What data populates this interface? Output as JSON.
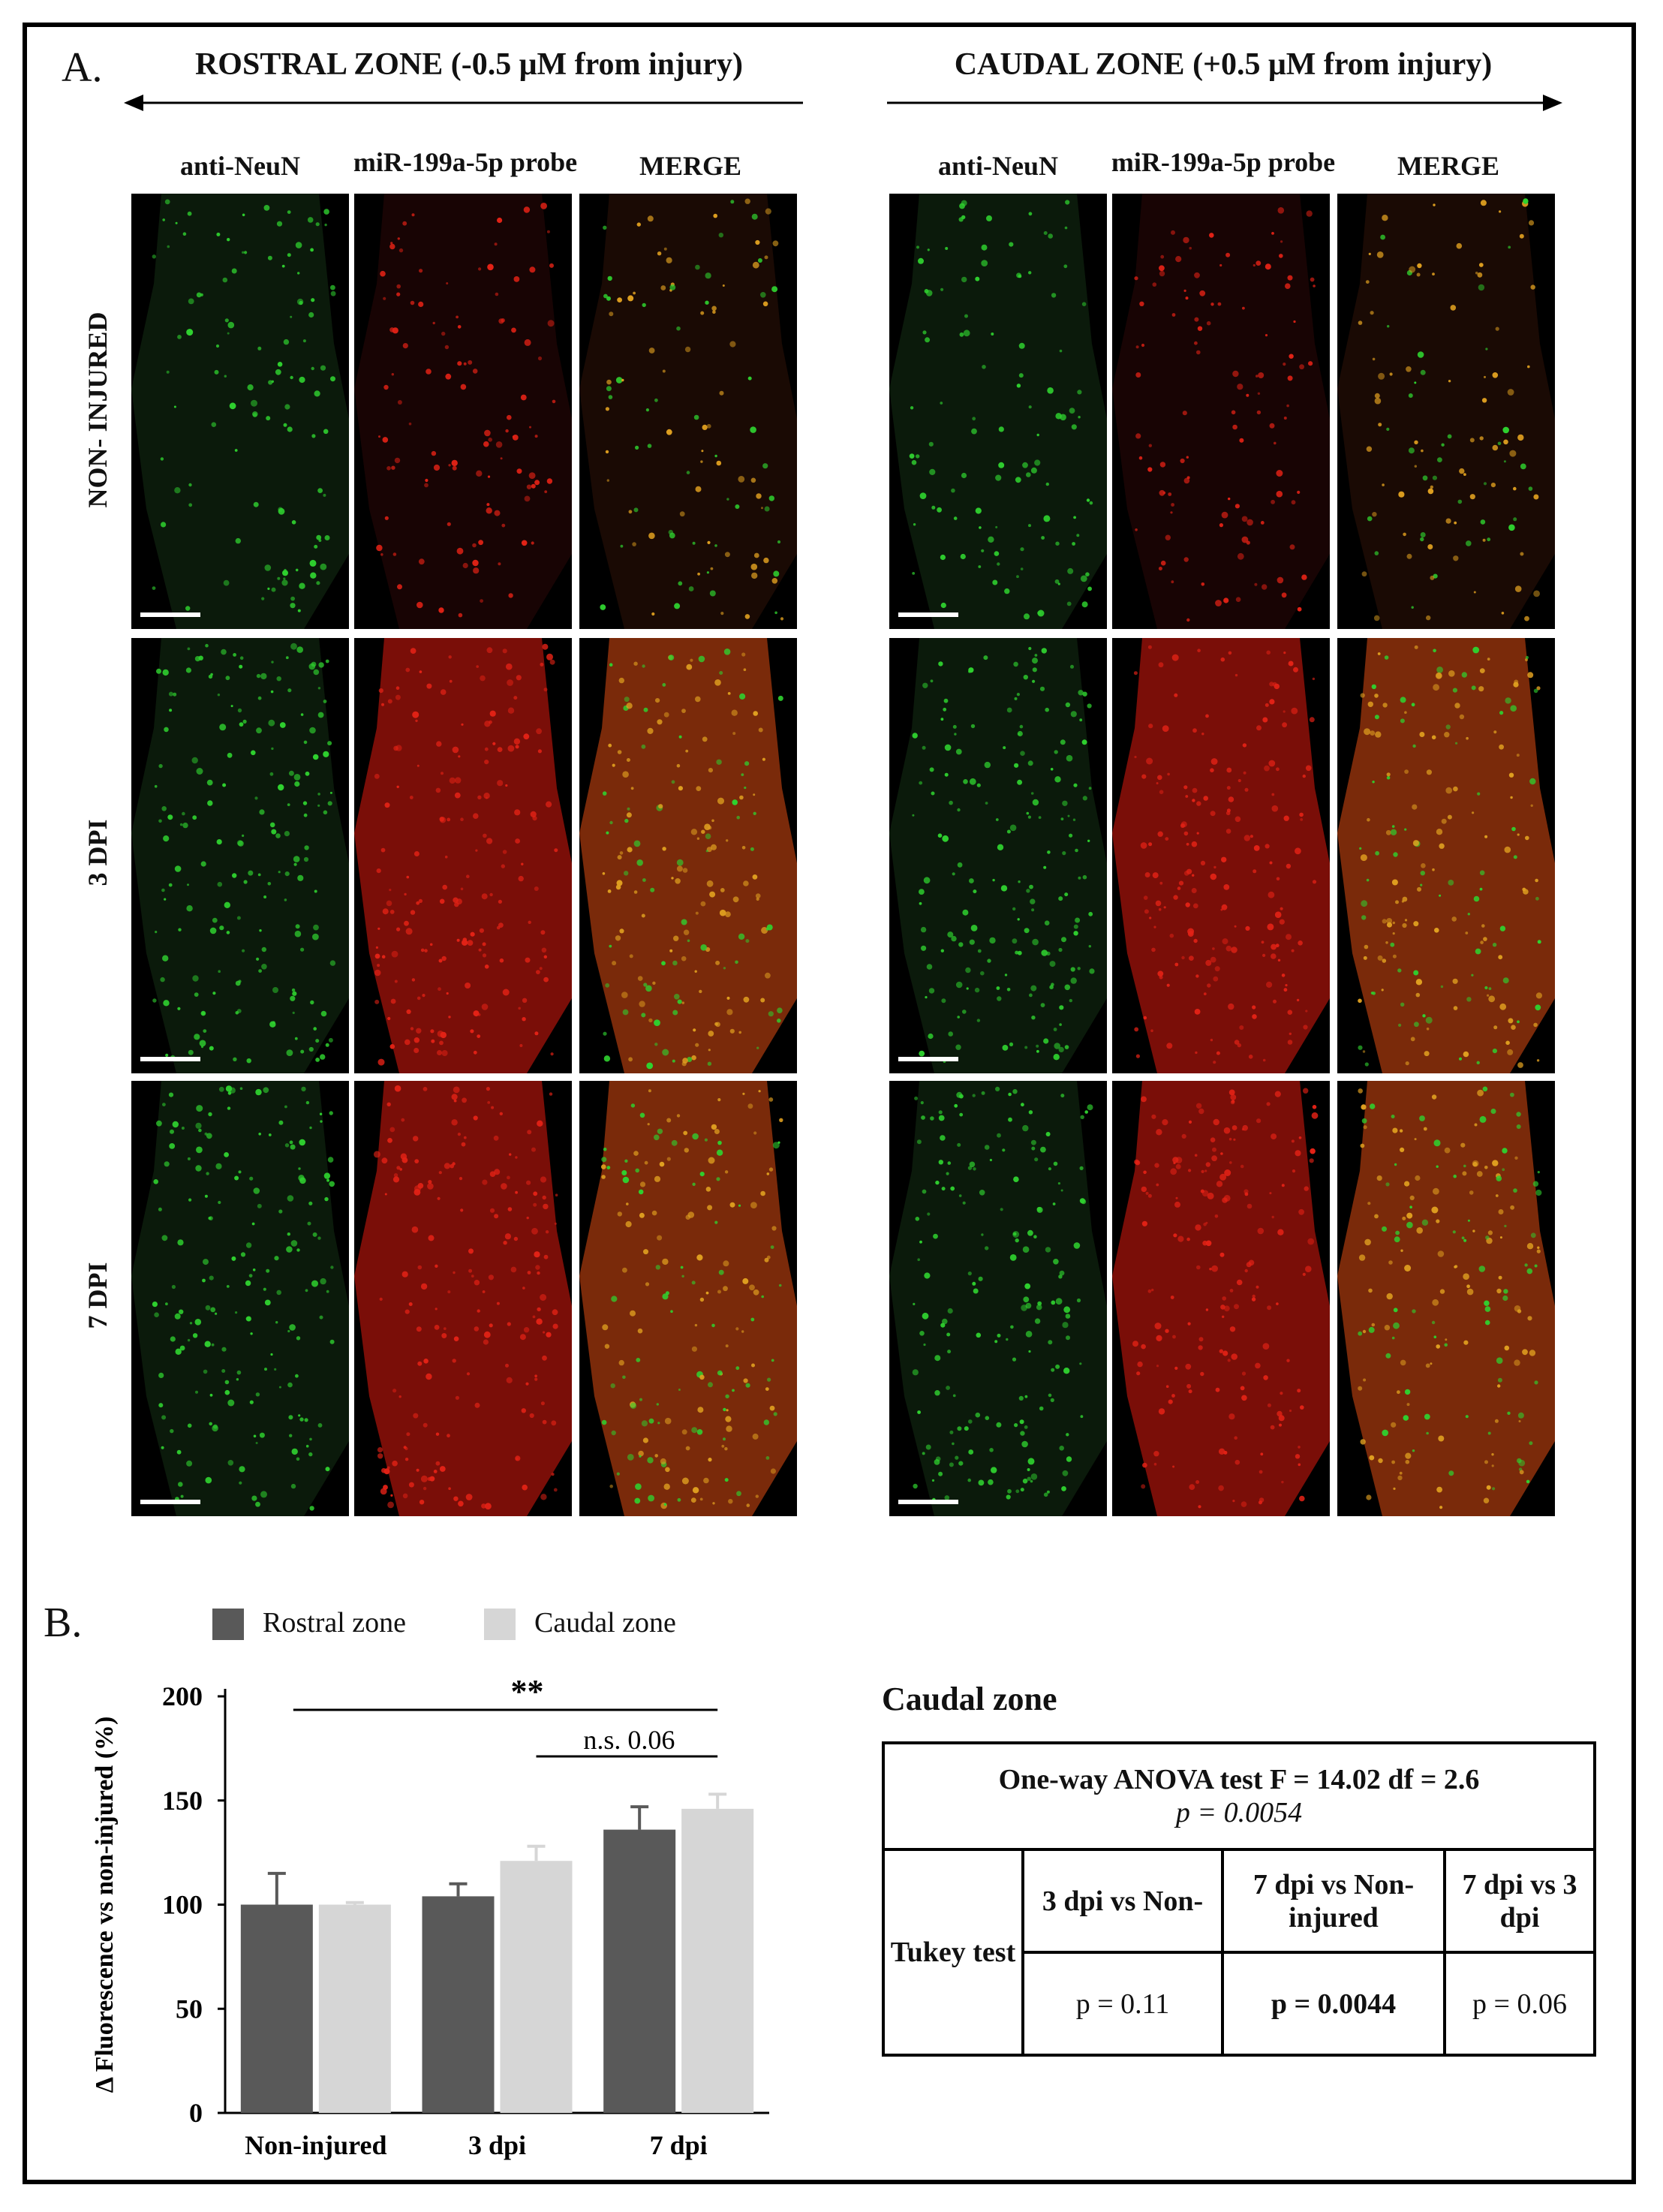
{
  "panel_a": {
    "letter": "A.",
    "rostral_title": "ROSTRAL ZONE (-0.5 μM from injury)",
    "caudal_title": "CAUDAL ZONE (+0.5 μM from injury)",
    "columns": [
      "anti-NeuN",
      "miR-199a-5p probe",
      "MERGE"
    ],
    "rows": [
      "NON- INJURED",
      "3 DPI",
      "7 DPI"
    ],
    "colors": {
      "green": "#2fd12f",
      "red": "#e32216",
      "merge": "#e0a020"
    }
  },
  "panel_b": {
    "letter": "B.",
    "legend": [
      {
        "label": "Rostral zone",
        "color": "#595959"
      },
      {
        "label": "Caudal zone",
        "color": "#d6d6d6"
      }
    ],
    "significance": {
      "star_label": "**",
      "ns_label": "n.s. 0.06"
    }
  },
  "chart_data": {
    "type": "bar",
    "categories": [
      "Non-injured",
      "3 dpi",
      "7 dpi"
    ],
    "series": [
      {
        "name": "Rostral zone",
        "values": [
          100,
          104,
          136
        ],
        "errors": [
          15,
          6,
          11
        ],
        "color": "#595959"
      },
      {
        "name": "Caudal zone",
        "values": [
          100,
          121,
          146
        ],
        "errors": [
          1,
          7,
          7
        ],
        "color": "#d6d6d6"
      }
    ],
    "ylabel": "Δ Fluorescence vs non-injured (%)",
    "xlabel": "",
    "ylim": [
      0,
      200
    ],
    "yticks": [
      0,
      50,
      100,
      150,
      200
    ]
  },
  "stats_table": {
    "title": "Caudal zone",
    "anova_line": "One-way ANOVA test F = 14.02  df = 2.6",
    "anova_p": "p = 0.0054",
    "test_label": "Tukey test",
    "comparisons": [
      {
        "label": "3 dpi vs Non-",
        "p": "p = 0.11",
        "bold": false
      },
      {
        "label": "7 dpi vs Non-injured",
        "p": "p = 0.0044",
        "bold": true
      },
      {
        "label": "7 dpi vs 3 dpi",
        "p": "p = 0.06",
        "bold": false
      }
    ]
  }
}
